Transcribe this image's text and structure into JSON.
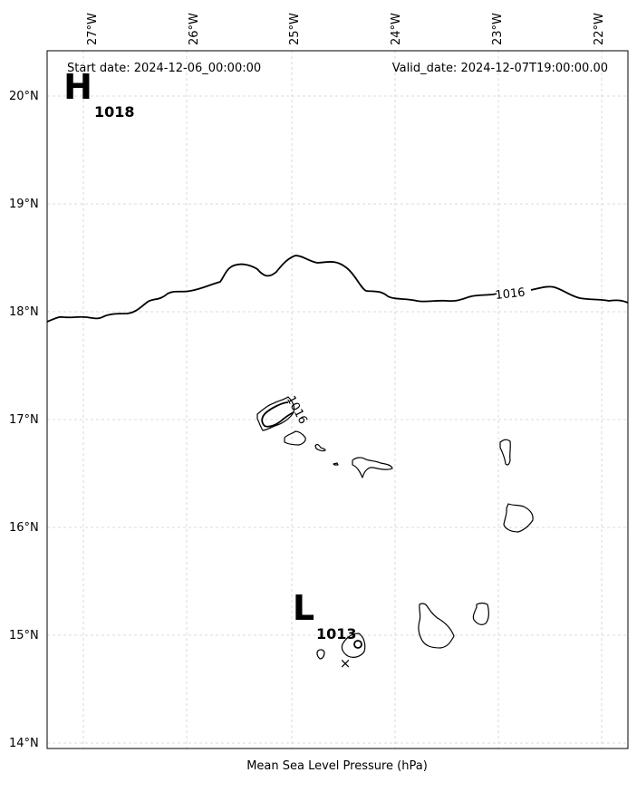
{
  "header": {
    "start_date": "Start date: 2024-12-06_00:00:00",
    "valid_date": "Valid_date: 2024-12-07T19:00:00.00"
  },
  "xlabel": "Mean Sea Level Pressure (hPa)",
  "lon_ticks": [
    "27°W",
    "26°W",
    "25°W",
    "24°W",
    "23°W",
    "22°W"
  ],
  "lat_ticks": [
    "20°N",
    "19°N",
    "18°N",
    "17°N",
    "16°N",
    "15°N",
    "14°N"
  ],
  "pressure_centers": [
    {
      "letter": "H",
      "value": "1018"
    },
    {
      "letter": "L",
      "value": "1013"
    }
  ],
  "isobar_labels": [
    "1016",
    "1016"
  ],
  "low_marker": "×"
}
